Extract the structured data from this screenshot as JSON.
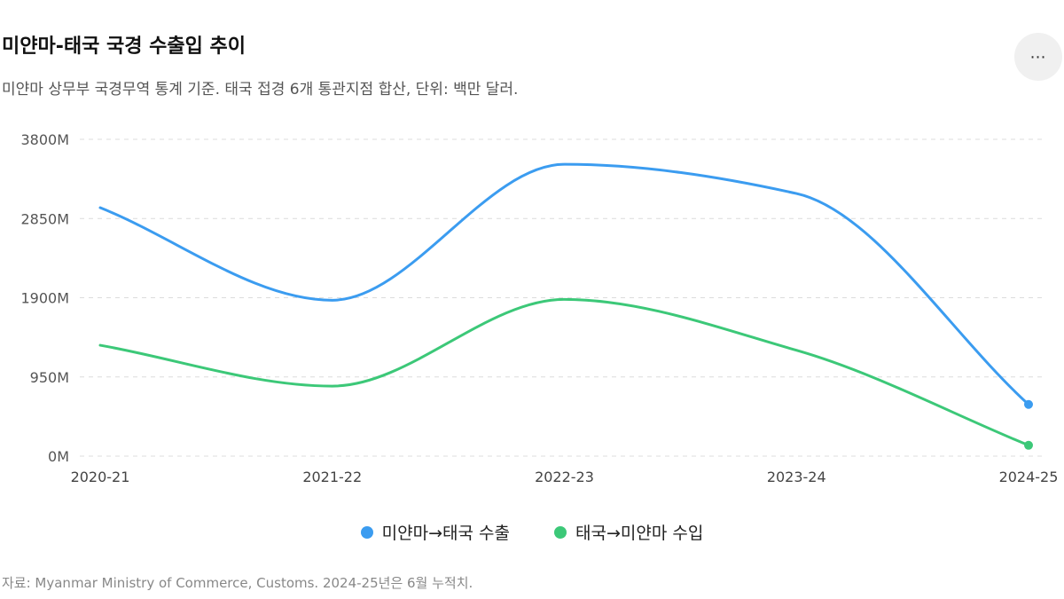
{
  "title": "미얀마-태국 국경 수출입 추이",
  "subtitle": "미얀마 상무부 국경무역 통계 기준. 태국 접경 6개 통관지점 합산, 단위: 백만 달러.",
  "more_button": "⋯",
  "source": "자료: Myanmar Ministry of Commerce, Customs. 2024-25년은 6월 누적치.",
  "chart_data": {
    "type": "line",
    "categories": [
      "2020-21",
      "2021-22",
      "2022-23",
      "2023-24",
      "2024-25"
    ],
    "y_ticks": [
      0,
      950,
      1900,
      2850,
      3800
    ],
    "y_tick_labels": [
      "0M",
      "950M",
      "1900M",
      "2850M",
      "3800M"
    ],
    "ylim": [
      0,
      3800
    ],
    "grid": true,
    "legend_position": "bottom",
    "series": [
      {
        "name": "미얀마→태국 수출",
        "color": "#3b9cf0",
        "values": [
          2980,
          1870,
          3500,
          3150,
          620
        ]
      },
      {
        "name": "태국→미얀마 수입",
        "color": "#3cc878",
        "values": [
          1330,
          840,
          1880,
          1270,
          130
        ]
      }
    ]
  }
}
